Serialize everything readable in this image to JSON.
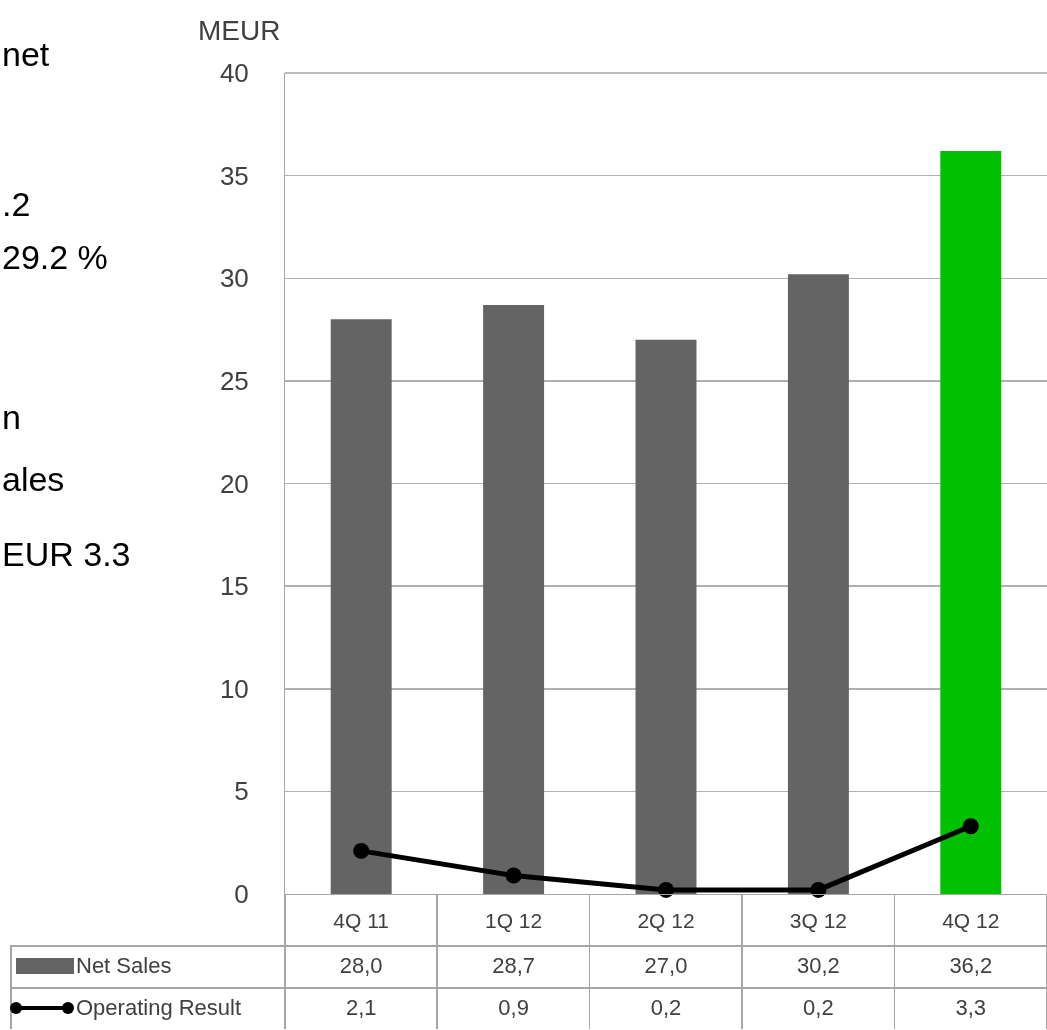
{
  "chart_data": {
    "type": "bar",
    "ylabel": "MEUR",
    "categories": [
      "4Q 11",
      "1Q 12",
      "2Q 12",
      "3Q 12",
      "4Q 12"
    ],
    "series": [
      {
        "name": "Net Sales",
        "colors": [
          "#646464",
          "#646464",
          "#646464",
          "#646464",
          "#00c000"
        ],
        "color": "#646464",
        "values": [
          28.0,
          28.7,
          27.0,
          30.2,
          36.2
        ],
        "value_labels": [
          "28,0",
          "28,7",
          "27,0",
          "30,2",
          "36,2"
        ]
      },
      {
        "name": "Operating Result",
        "type": "line",
        "color": "#000000",
        "marker": "circle",
        "values": [
          2.1,
          0.9,
          0.2,
          0.2,
          3.3
        ],
        "value_labels": [
          "2,1",
          "0,9",
          "0,2",
          "0,2",
          "3,3"
        ]
      }
    ],
    "ylim": [
      0,
      40
    ],
    "yticks": [
      0,
      5,
      10,
      15,
      20,
      25,
      30,
      35,
      40
    ],
    "grid": "y",
    "legend": "bottom left",
    "annotations": [
      "net",
      ".2",
      "29.2 %",
      "n",
      "ales",
      "EUR 3.3"
    ]
  }
}
